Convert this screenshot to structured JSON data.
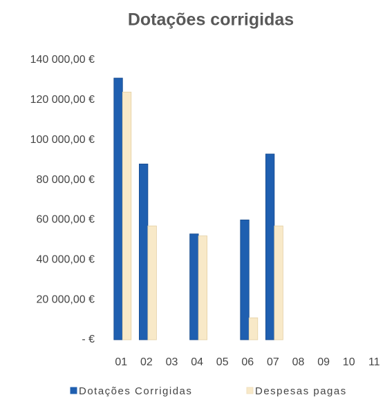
{
  "chart_data": {
    "type": "bar",
    "title": "Dotações corrigidas",
    "categories": [
      "01",
      "02",
      "03",
      "04",
      "05",
      "06",
      "07",
      "08",
      "09",
      "10",
      "11"
    ],
    "series": [
      {
        "name": "Dotações Corrigidas",
        "color": "#1f5fb0",
        "values": [
          131000,
          88000,
          0,
          53000,
          0,
          60000,
          93000,
          0,
          0,
          0,
          0
        ]
      },
      {
        "name": "Despesas pagas",
        "color": "#f8e9c8",
        "values": [
          124000,
          57000,
          0,
          52000,
          0,
          11000,
          57000,
          0,
          0,
          0,
          0
        ]
      }
    ],
    "ylim": [
      0,
      140000
    ],
    "yticks": [
      {
        "value": 0,
        "label": "-  €"
      },
      {
        "value": 20000,
        "label": "20 000,00 €"
      },
      {
        "value": 40000,
        "label": "40 000,00 €"
      },
      {
        "value": 60000,
        "label": "60 000,00 €"
      },
      {
        "value": 80000,
        "label": "80 000,00 €"
      },
      {
        "value": 100000,
        "label": "100 000,00 €"
      },
      {
        "value": 120000,
        "label": "120 000,00 €"
      },
      {
        "value": 140000,
        "label": "140 000,00 €"
      }
    ],
    "grid": false,
    "legend": "bottom"
  }
}
